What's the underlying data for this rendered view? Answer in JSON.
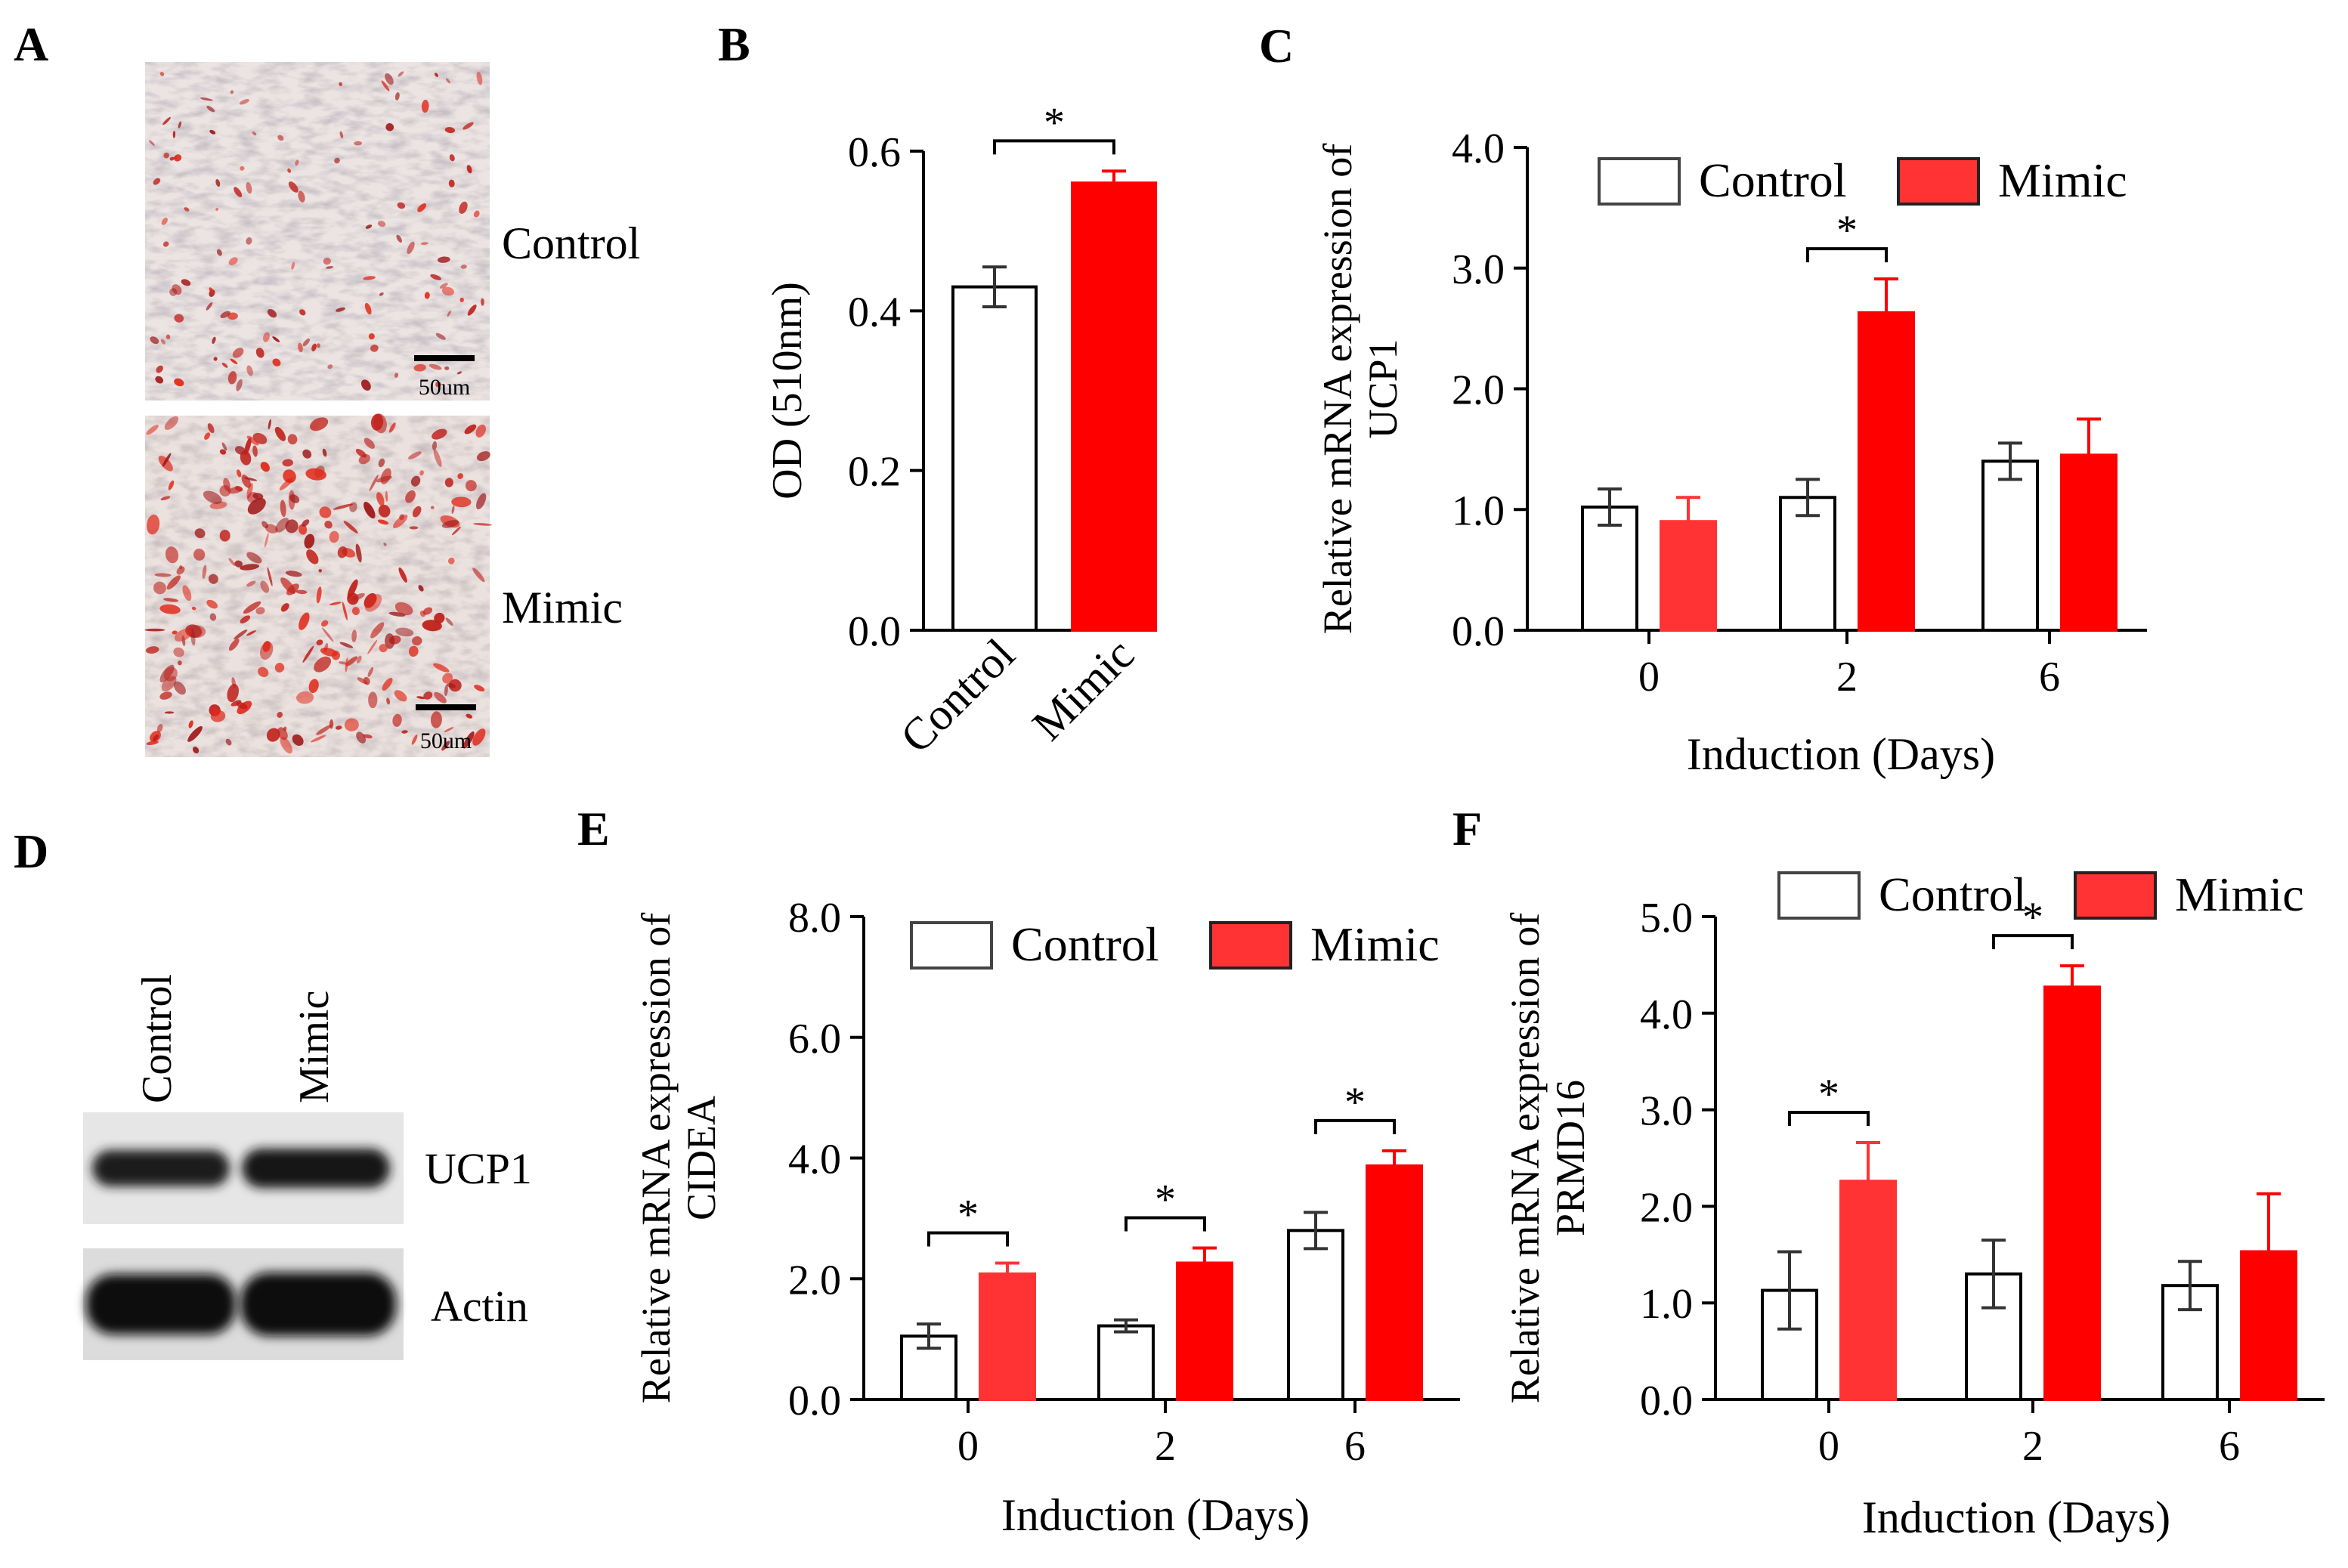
{
  "panels": {
    "a": {
      "letter": "A",
      "images": [
        {
          "label": "Control",
          "scale_bar": "50um"
        },
        {
          "label": "Mimic",
          "scale_bar": "50um"
        }
      ]
    },
    "d": {
      "letter": "D",
      "lanes": [
        "Control",
        "Mimic"
      ],
      "bands": [
        "UCP1",
        "Actin"
      ]
    }
  },
  "colors": {
    "control_fill": "#ffffff",
    "mimic_fill": "#ff0000",
    "mimic_fill_alt": "#ff3333",
    "axis": "#000000"
  },
  "chart_data": [
    {
      "id": "b",
      "letter": "B",
      "type": "bar",
      "categories": [
        "Control",
        "Mimic"
      ],
      "values": [
        0.43,
        0.56
      ],
      "errors": [
        0.025,
        0.015
      ],
      "ylabel": "OD (510nm)",
      "xlabel": "",
      "ylim": [
        0,
        0.6
      ],
      "yticks": [
        "0.0",
        "0.2",
        "0.4",
        "0.6"
      ],
      "significance": [
        {
          "between": [
            0,
            1
          ],
          "label": "*"
        }
      ],
      "legend": "none",
      "grid": false
    },
    {
      "id": "c",
      "letter": "C",
      "type": "bar",
      "categories": [
        "0",
        "2",
        "6"
      ],
      "series": [
        {
          "name": "Control",
          "values": [
            1.02,
            1.1,
            1.4
          ],
          "errors": [
            0.15,
            0.15,
            0.15
          ]
        },
        {
          "name": "Mimic",
          "values": [
            0.9,
            2.63,
            1.45
          ],
          "errors": [
            0.2,
            0.28,
            0.3
          ]
        }
      ],
      "xlabel": "Induction (Days)",
      "ylabel": [
        "Relative mRNA expression of",
        "UCP1"
      ],
      "ylim": [
        0,
        4
      ],
      "yticks": [
        "0.0",
        "1.0",
        "2.0",
        "3.0",
        "4.0"
      ],
      "significance": [
        {
          "group": 1,
          "label": "*"
        }
      ],
      "legend": "top",
      "grid": false
    },
    {
      "id": "e",
      "letter": "E",
      "type": "bar",
      "categories": [
        "0",
        "2",
        "6"
      ],
      "series": [
        {
          "name": "Control",
          "values": [
            1.05,
            1.22,
            2.8
          ],
          "errors": [
            0.2,
            0.1,
            0.3
          ]
        },
        {
          "name": "Mimic",
          "values": [
            2.08,
            2.26,
            3.87
          ],
          "errors": [
            0.18,
            0.25,
            0.25
          ]
        }
      ],
      "xlabel": "Induction (Days)",
      "ylabel": [
        "Relative mRNA expression of",
        "CIDEA"
      ],
      "ylim": [
        0,
        8
      ],
      "yticks": [
        "0.0",
        "2.0",
        "4.0",
        "6.0",
        "8.0"
      ],
      "significance": [
        {
          "group": 0,
          "label": "*"
        },
        {
          "group": 1,
          "label": "*"
        },
        {
          "group": 2,
          "label": "*"
        }
      ],
      "legend": "top",
      "grid": false
    },
    {
      "id": "f",
      "letter": "F",
      "type": "bar",
      "categories": [
        "0",
        "2",
        "6"
      ],
      "series": [
        {
          "name": "Control",
          "values": [
            1.13,
            1.3,
            1.18
          ],
          "errors": [
            0.4,
            0.35,
            0.25
          ]
        },
        {
          "name": "Mimic",
          "values": [
            2.26,
            4.27,
            1.53
          ],
          "errors": [
            0.4,
            0.22,
            0.6
          ]
        }
      ],
      "xlabel": "Induction (Days)",
      "ylabel": [
        "Relative mRNA expression of",
        "PRMD16"
      ],
      "ylim": [
        0,
        5
      ],
      "yticks": [
        "0.0",
        "1.0",
        "2.0",
        "3.0",
        "4.0",
        "5.0"
      ],
      "significance": [
        {
          "group": 0,
          "label": "*"
        },
        {
          "group": 1,
          "label": "*"
        }
      ],
      "legend": "top",
      "grid": false
    }
  ]
}
